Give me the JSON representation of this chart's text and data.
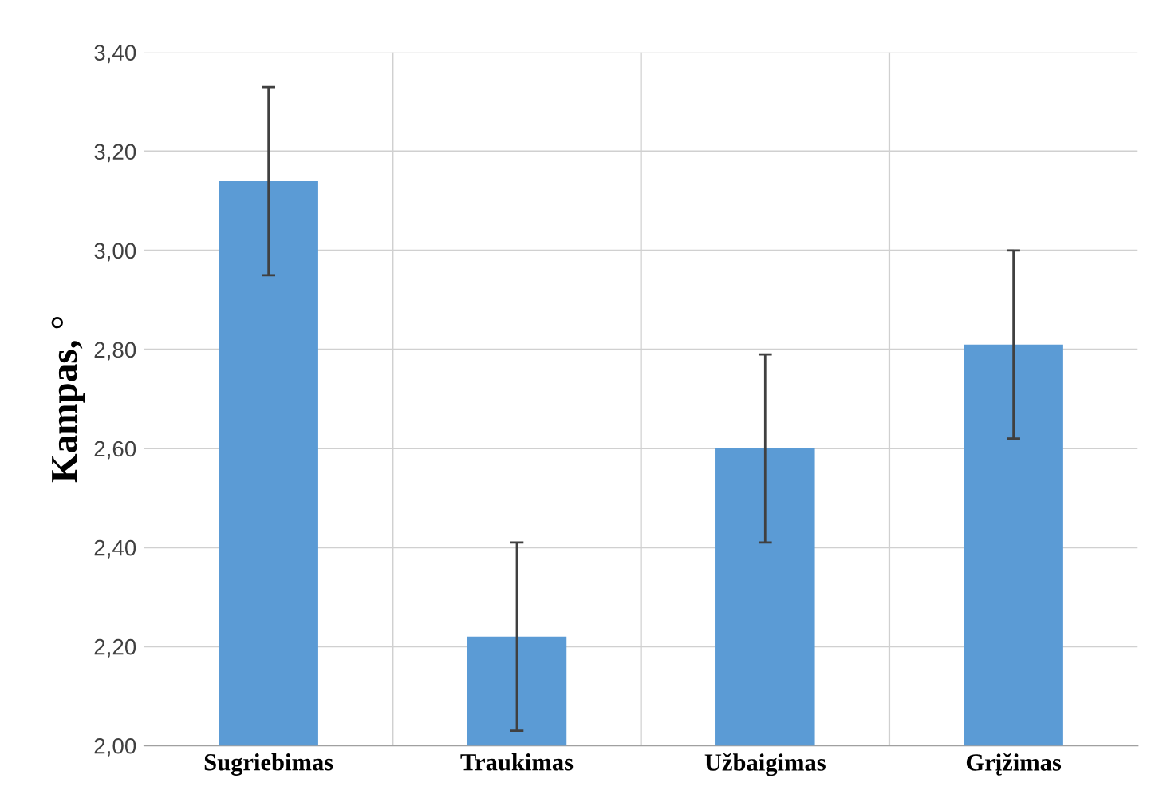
{
  "chart_data": {
    "type": "bar",
    "ylabel": "Kampas, °",
    "categories": [
      "Sugriebimas",
      "Traukimas",
      "Užbaigimas",
      "Grįžimas"
    ],
    "values": [
      3.14,
      2.22,
      2.6,
      2.81
    ],
    "errors": [
      0.19,
      0.19,
      0.19,
      0.19
    ],
    "color": "#5b9bd5",
    "ylim": [
      2.0,
      3.4
    ],
    "yticks": [
      {
        "value": 2.0,
        "label": "2,00"
      },
      {
        "value": 2.2,
        "label": "2,20"
      },
      {
        "value": 2.4,
        "label": "2,40"
      },
      {
        "value": 2.6,
        "label": "2,60"
      },
      {
        "value": 2.8,
        "label": "2,80"
      },
      {
        "value": 3.0,
        "label": "3,00"
      },
      {
        "value": 3.2,
        "label": "3,20"
      },
      {
        "value": 3.4,
        "label": "3,40"
      }
    ],
    "grid": true
  }
}
